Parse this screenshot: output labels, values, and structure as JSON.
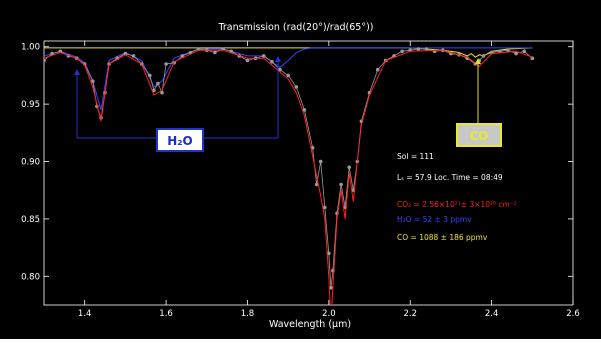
{
  "chart_data": {
    "type": "line",
    "title": "Transmission  (rad(20°)/rad(65°))",
    "xlabel": "Wavelength (μm)",
    "ylabel": "",
    "xlim": [
      1.3,
      2.6
    ],
    "ylim": [
      0.775,
      1.005
    ],
    "grid": false,
    "x_ticks": [
      1.4,
      1.6,
      1.8,
      2.0,
      2.2,
      2.4,
      2.6
    ],
    "x_tick_labels": [
      "1.4",
      "1.6",
      "1.8",
      "2.0",
      "2.2",
      "2.4",
      "2.6"
    ],
    "y_ticks": [
      0.8,
      0.85,
      0.9,
      0.95,
      1.0
    ],
    "y_tick_labels": [
      "0.80",
      "0.85",
      "0.90",
      "0.95",
      "1.00"
    ],
    "colors": {
      "background": "#000000",
      "axes": "#ffffff",
      "observed": "#9a9a9a",
      "total_model": "#ff2020",
      "h2o_model": "#3344ff",
      "co_model": "#f0e030",
      "h2o_box": "#2233cc",
      "co_box": "#e0e030"
    },
    "series": [
      {
        "role": "observed",
        "style": "markers",
        "x": [
          1.3,
          1.32,
          1.34,
          1.36,
          1.38,
          1.4,
          1.42,
          1.43,
          1.44,
          1.45,
          1.46,
          1.48,
          1.5,
          1.52,
          1.54,
          1.56,
          1.57,
          1.58,
          1.59,
          1.6,
          1.62,
          1.64,
          1.66,
          1.68,
          1.7,
          1.72,
          1.74,
          1.76,
          1.78,
          1.8,
          1.82,
          1.84,
          1.86,
          1.88,
          1.9,
          1.92,
          1.94,
          1.96,
          1.97,
          1.98,
          1.99,
          2.0,
          2.005,
          2.01,
          2.02,
          2.03,
          2.04,
          2.05,
          2.06,
          2.07,
          2.08,
          2.1,
          2.12,
          2.14,
          2.16,
          2.18,
          2.2,
          2.22,
          2.24,
          2.26,
          2.28,
          2.3,
          2.32,
          2.34,
          2.36,
          2.37,
          2.38,
          2.4,
          2.42,
          2.44,
          2.46,
          2.48,
          2.5
        ],
        "y": [
          0.988,
          0.994,
          0.996,
          0.992,
          0.99,
          0.985,
          0.97,
          0.948,
          0.938,
          0.96,
          0.985,
          0.99,
          0.994,
          0.992,
          0.985,
          0.975,
          0.962,
          0.968,
          0.96,
          0.985,
          0.986,
          0.992,
          0.995,
          0.998,
          0.997,
          0.995,
          0.998,
          0.996,
          0.992,
          0.988,
          0.99,
          0.992,
          0.987,
          0.98,
          0.975,
          0.965,
          0.945,
          0.912,
          0.88,
          0.9,
          0.86,
          0.82,
          0.79,
          0.805,
          0.855,
          0.88,
          0.86,
          0.895,
          0.875,
          0.9,
          0.935,
          0.96,
          0.98,
          0.988,
          0.992,
          0.996,
          0.997,
          0.998,
          0.998,
          0.996,
          0.997,
          0.994,
          0.993,
          0.99,
          0.985,
          0.988,
          0.992,
          0.995,
          0.996,
          0.997,
          0.994,
          0.996,
          0.99
        ]
      },
      {
        "role": "total_model",
        "style": "line",
        "x": [
          1.3,
          1.34,
          1.38,
          1.4,
          1.42,
          1.44,
          1.46,
          1.5,
          1.54,
          1.57,
          1.59,
          1.62,
          1.68,
          1.74,
          1.8,
          1.84,
          1.88,
          1.9,
          1.92,
          1.94,
          1.96,
          1.98,
          1.99,
          2.0,
          2.005,
          2.01,
          2.02,
          2.03,
          2.04,
          2.05,
          2.06,
          2.07,
          2.08,
          2.1,
          2.14,
          2.2,
          2.28,
          2.34,
          2.37,
          2.4,
          2.46,
          2.5
        ],
        "y": [
          0.99,
          0.995,
          0.99,
          0.984,
          0.965,
          0.935,
          0.985,
          0.993,
          0.985,
          0.958,
          0.962,
          0.987,
          0.997,
          0.997,
          0.99,
          0.99,
          0.978,
          0.972,
          0.96,
          0.94,
          0.905,
          0.87,
          0.85,
          0.8,
          0.76,
          0.79,
          0.85,
          0.875,
          0.85,
          0.89,
          0.865,
          0.9,
          0.932,
          0.958,
          0.988,
          0.996,
          0.997,
          0.991,
          0.983,
          0.994,
          0.996,
          0.991
        ]
      },
      {
        "role": "h2o_model",
        "style": "line",
        "x": [
          1.3,
          1.34,
          1.38,
          1.4,
          1.42,
          1.44,
          1.46,
          1.5,
          1.54,
          1.57,
          1.59,
          1.62,
          1.68,
          1.74,
          1.8,
          1.84,
          1.88,
          1.9,
          1.92,
          1.94,
          1.96,
          1.98,
          2.0,
          2.02,
          2.1,
          2.2,
          2.3,
          2.4,
          2.5
        ],
        "y": [
          0.992,
          0.996,
          0.991,
          0.986,
          0.97,
          0.945,
          0.988,
          0.995,
          0.988,
          0.965,
          0.97,
          0.99,
          0.998,
          0.998,
          0.992,
          0.992,
          0.982,
          0.988,
          0.995,
          0.998,
          0.999,
          0.999,
          0.999,
          0.999,
          0.999,
          0.999,
          0.999,
          0.999,
          0.999
        ]
      },
      {
        "role": "co_model",
        "style": "line",
        "x": [
          1.3,
          1.8,
          2.2,
          2.28,
          2.32,
          2.34,
          2.35,
          2.36,
          2.37,
          2.38,
          2.4,
          2.44,
          2.5
        ],
        "y": [
          0.999,
          0.999,
          0.999,
          0.997,
          0.995,
          0.992,
          0.994,
          0.991,
          0.993,
          0.992,
          0.996,
          0.998,
          0.999
        ]
      }
    ],
    "annotations": {
      "h2o_label": "H₂O",
      "co_label": "CO",
      "sol": "Sol   =  111",
      "ls": "Lₛ   =  57.9     Loc. Time = 08:49",
      "co2": "CO₂ = 2.56×10²¹±  3×10²⁰ cm⁻²",
      "h2o": "H₂O =  52 ±   3 ppmv",
      "co": "CO    = 1088 ± 186 ppmv"
    }
  }
}
